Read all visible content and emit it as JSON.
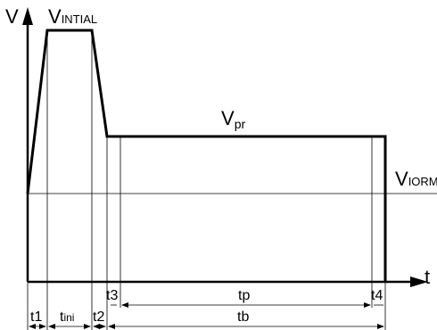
{
  "axes": {
    "y_label": "V",
    "x_label": "t"
  },
  "levels": {
    "v_initial": {
      "main": "V",
      "sub": "INTIAL"
    },
    "v_pr": {
      "main": "V",
      "sub": "pr"
    },
    "v_iorm": {
      "main": "V",
      "sub": "IORM"
    }
  },
  "intervals": {
    "t1": "t1",
    "t_ini": {
      "main": "t",
      "sub": "ini"
    },
    "t2": "t2",
    "t3": "t3",
    "tp": "tp",
    "t4": "t4",
    "tb": "tb"
  }
}
